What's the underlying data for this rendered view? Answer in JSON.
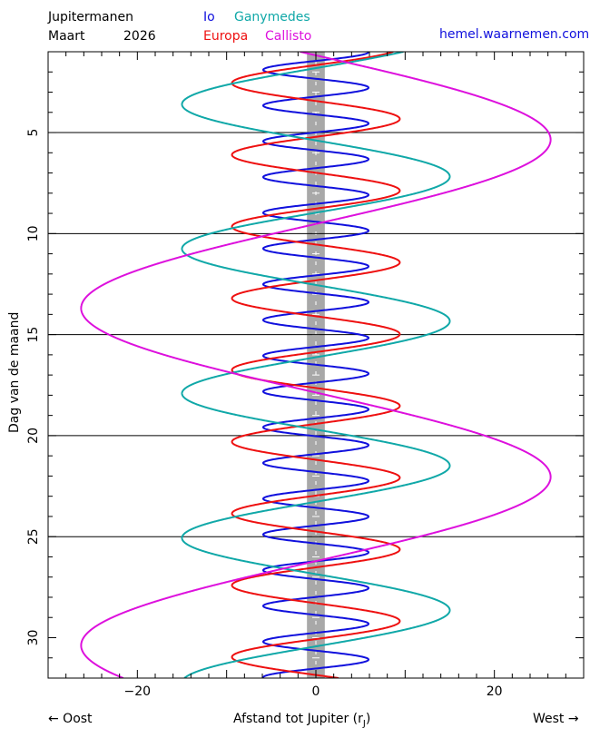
{
  "header": {
    "title": "Jupitermanen",
    "month": "Maart",
    "year": "2026",
    "site": "hemel.waarnemen.com"
  },
  "legend": [
    {
      "name": "Io",
      "color": "#1010dd"
    },
    {
      "name": "Ganymedes",
      "color": "#10a8a8"
    },
    {
      "name": "Europa",
      "color": "#ee1010"
    },
    {
      "name": "Callisto",
      "color": "#dd10dd"
    }
  ],
  "footer": {
    "east": "← Oost",
    "west": "West →",
    "xlabel_main": "Afstand tot Jupiter (r",
    "xlabel_sub": "J",
    "xlabel_end": ")"
  },
  "chart_data": {
    "type": "line",
    "xlabel": "Afstand tot Jupiter (rJ)",
    "ylabel": "Dag van de maand",
    "xlim": [
      -30,
      30
    ],
    "ylim": [
      1.0,
      32.0
    ],
    "y_inverted": true,
    "xticks": [
      -20,
      0,
      20
    ],
    "yticks": [
      5,
      10,
      15,
      20,
      25,
      30
    ],
    "grid_days": [
      5,
      10,
      15,
      20,
      25
    ],
    "jupiter_band_halfwidth": 1,
    "series": [
      {
        "name": "Io",
        "color": "#1010dd",
        "amplitude": 5.9,
        "period_days": 1.769,
        "ref_day": 2.78,
        "ref_sign": 1
      },
      {
        "name": "Europa",
        "color": "#ee1010",
        "amplitude": 9.4,
        "period_days": 3.551,
        "ref_day": 2.55,
        "ref_sign": -1
      },
      {
        "name": "Ganymedes",
        "color": "#10a8a8",
        "amplitude": 15.0,
        "period_days": 7.155,
        "ref_day": 3.6,
        "ref_sign": -1
      },
      {
        "name": "Callisto",
        "color": "#dd10dd",
        "amplitude": 26.3,
        "period_days": 16.689,
        "ref_day": 5.35,
        "ref_sign": 1
      }
    ]
  }
}
